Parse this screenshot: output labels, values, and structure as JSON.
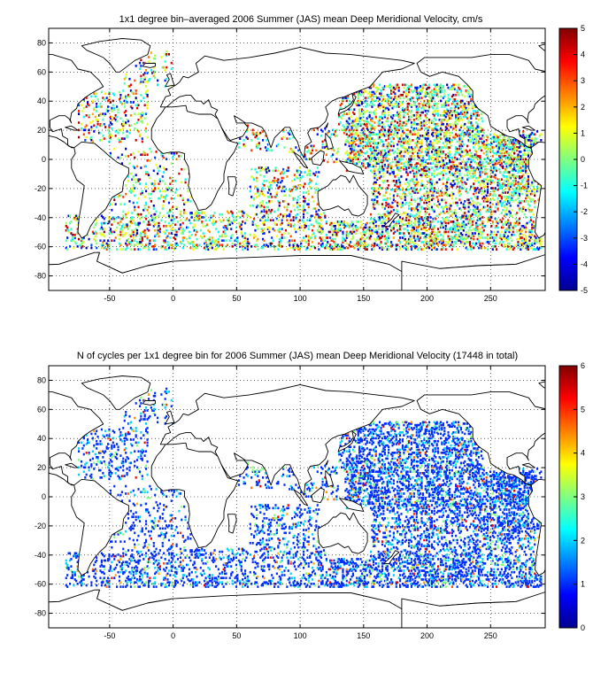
{
  "chart_data": [
    {
      "type": "heatmap",
      "title": "1x1 degree bin–averaged 2006 Summer (JAS) mean Deep Meridional Velocity, cm/s",
      "xticks": [
        -50,
        0,
        50,
        100,
        150,
        200,
        250
      ],
      "yticks": [
        -80,
        -60,
        -40,
        -20,
        0,
        20,
        40,
        60,
        80
      ],
      "xlim": [
        -98,
        293
      ],
      "ylim": [
        -90,
        90
      ],
      "grid": true,
      "colormap": "jet",
      "colorbar": {
        "range": [
          -5,
          5
        ],
        "ticks": [
          5,
          4,
          3,
          2,
          1,
          0,
          -1,
          -2,
          -3,
          -4,
          -5
        ]
      }
    },
    {
      "type": "heatmap",
      "title": "N of cycles per 1x1 degree bin for 2006 Summer (JAS) mean Deep Meridional Velocity (17448 in total)",
      "xticks": [
        -50,
        0,
        50,
        100,
        150,
        200,
        250
      ],
      "yticks": [
        -80,
        -60,
        -40,
        -20,
        0,
        20,
        40,
        60,
        80
      ],
      "xlim": [
        -98,
        293
      ],
      "ylim": [
        -90,
        90
      ],
      "grid": true,
      "colormap": "jet",
      "colorbar": {
        "range": [
          0,
          6
        ],
        "ticks": [
          6,
          5,
          4,
          3,
          2,
          1,
          0
        ]
      }
    }
  ]
}
